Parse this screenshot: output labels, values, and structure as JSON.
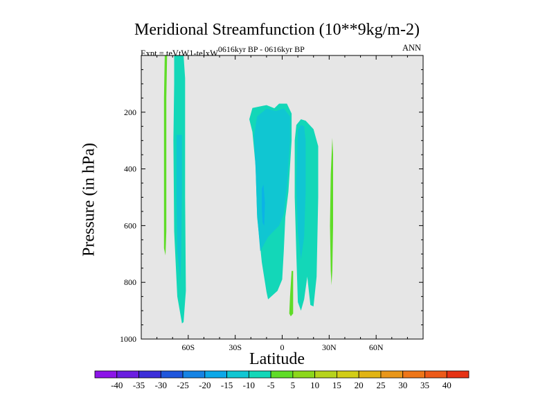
{
  "chart_data": {
    "type": "contour",
    "title": "Meridional Streamfunction (10**9kg/m-2)",
    "subtitle_left": "Expt = teVtW1-teIxW",
    "subtitle_left_superscript": "0616kyr BP - 0616kyr BP",
    "subtitle_right": "ANN",
    "xlabel": "Latitude",
    "ylabel": "Pressure (in hPa)",
    "xlim": [
      -90,
      90
    ],
    "ylim": [
      1000,
      0
    ],
    "xticks": [
      -60,
      -30,
      0,
      30,
      60
    ],
    "xtick_labels": [
      "60S",
      "30S",
      "0",
      "30N",
      "60N"
    ],
    "yticks": [
      200,
      400,
      600,
      800,
      1000
    ],
    "ytick_labels": [
      "200",
      "400",
      "600",
      "800",
      "1000"
    ],
    "background_color": "#e6e6e6",
    "regions": [
      {
        "name": "Northern-high-latitude positive cell (SH)",
        "level": 5,
        "color": "#5fdc28",
        "points": [
          [
            -75,
            0
          ],
          [
            -73.5,
            0
          ],
          [
            -74,
            150
          ],
          [
            -74,
            500
          ],
          [
            -74,
            620
          ],
          [
            -74.5,
            705
          ],
          [
            -75.5,
            680
          ],
          [
            -75.5,
            500
          ],
          [
            -75.5,
            150
          ]
        ]
      },
      {
        "name": "SH negative cell outer",
        "level": -5,
        "color": "#13d7b8",
        "points": [
          [
            -69,
            0
          ],
          [
            -63,
            0
          ],
          [
            -62,
            80
          ],
          [
            -62,
            500
          ],
          [
            -61.5,
            830
          ],
          [
            -63,
            940
          ],
          [
            -64,
            945
          ],
          [
            -67,
            850
          ],
          [
            -69,
            620
          ],
          [
            -69.5,
            300
          ],
          [
            -69,
            100
          ]
        ]
      },
      {
        "name": "SH negative cell inner",
        "level": -10,
        "color": "#10c6d2",
        "points": [
          [
            -67.5,
            280
          ],
          [
            -64,
            280
          ],
          [
            -64,
            470
          ],
          [
            -64.5,
            700
          ],
          [
            -65,
            790
          ],
          [
            -67,
            690
          ],
          [
            -67.5,
            500
          ]
        ]
      },
      {
        "name": "Tropical negative cell outer",
        "level": -5,
        "color": "#13d7b8",
        "points": [
          [
            -21,
            225
          ],
          [
            -19,
            185
          ],
          [
            -10,
            175
          ],
          [
            -5,
            186
          ],
          [
            -2,
            170
          ],
          [
            3,
            170
          ],
          [
            6,
            205
          ],
          [
            6,
            300
          ],
          [
            4,
            480
          ],
          [
            2,
            570
          ],
          [
            1,
            690
          ],
          [
            0,
            790
          ],
          [
            -3,
            830
          ],
          [
            -9,
            860
          ],
          [
            -10,
            835
          ],
          [
            -13,
            730
          ],
          [
            -16,
            570
          ],
          [
            -17,
            390
          ],
          [
            -19,
            270
          ]
        ]
      },
      {
        "name": "Tropical negative cell inner",
        "level": -10,
        "color": "#10c6d2",
        "points": [
          [
            -18,
            285
          ],
          [
            -16,
            215
          ],
          [
            -10,
            188
          ],
          [
            -4,
            196
          ],
          [
            1,
            187
          ],
          [
            5,
            215
          ],
          [
            5,
            300
          ],
          [
            3,
            460
          ],
          [
            1,
            560
          ],
          [
            -2,
            600
          ],
          [
            -9,
            640
          ],
          [
            -14,
            690
          ],
          [
            -16,
            560
          ],
          [
            -17,
            400
          ]
        ]
      },
      {
        "name": "Tropical negative core",
        "level": -15,
        "color": "#0bb3e6",
        "points": [
          [
            -13,
            470
          ],
          [
            -12,
            455
          ],
          [
            -11,
            520
          ],
          [
            -11.5,
            600
          ],
          [
            -12.5,
            590
          ],
          [
            -13,
            540
          ]
        ]
      },
      {
        "name": "NH tropical negative cell outer",
        "level": -5,
        "color": "#13d7b8",
        "points": [
          [
            9,
            245
          ],
          [
            12,
            225
          ],
          [
            15,
            230
          ],
          [
            20,
            260
          ],
          [
            23,
            320
          ],
          [
            23,
            500
          ],
          [
            22,
            780
          ],
          [
            20,
            885
          ],
          [
            18,
            880
          ],
          [
            16,
            780
          ],
          [
            14,
            860
          ],
          [
            12,
            900
          ],
          [
            10,
            870
          ],
          [
            9,
            700
          ],
          [
            8,
            500
          ],
          [
            8,
            300
          ]
        ]
      },
      {
        "name": "NH tropical negative cell inner",
        "level": -10,
        "color": "#10c6d2",
        "points": [
          [
            10,
            265
          ],
          [
            12,
            245
          ],
          [
            14,
            250
          ],
          [
            15,
            300
          ],
          [
            15,
            480
          ],
          [
            14,
            640
          ],
          [
            12,
            720
          ],
          [
            10,
            620
          ],
          [
            9,
            450
          ]
        ]
      },
      {
        "name": "Equatorial positive sliver",
        "level": 5,
        "color": "#5fdc28",
        "points": [
          [
            6,
            760
          ],
          [
            7,
            760
          ],
          [
            7,
            910
          ],
          [
            5.5,
            920
          ],
          [
            4.5,
            910
          ],
          [
            5,
            850
          ]
        ]
      },
      {
        "name": "NH subtropical positive sliver",
        "level": 5,
        "color": "#5fdc28",
        "points": [
          [
            32,
            290
          ],
          [
            32.5,
            350
          ],
          [
            32.5,
            600
          ],
          [
            32,
            760
          ],
          [
            31.5,
            810
          ],
          [
            31,
            760
          ],
          [
            30.5,
            600
          ],
          [
            31,
            420
          ]
        ]
      }
    ],
    "colorbar": {
      "colors": [
        "#8c14e8",
        "#6a1ee0",
        "#3c2ed9",
        "#1f56dc",
        "#1583e4",
        "#0ca8e8",
        "#10c6d2",
        "#13d7b8",
        "#5fdc28",
        "#8cd71b",
        "#b6d31c",
        "#d2cd16",
        "#e1b414",
        "#e8961a",
        "#ee7618",
        "#ec5a19",
        "#e63214"
      ],
      "labels": [
        "-40",
        "-35",
        "-30",
        "-25",
        "-20",
        "-15",
        "-10",
        "-5",
        "5",
        "10",
        "15",
        "20",
        "25",
        "30",
        "35",
        "40"
      ]
    }
  }
}
